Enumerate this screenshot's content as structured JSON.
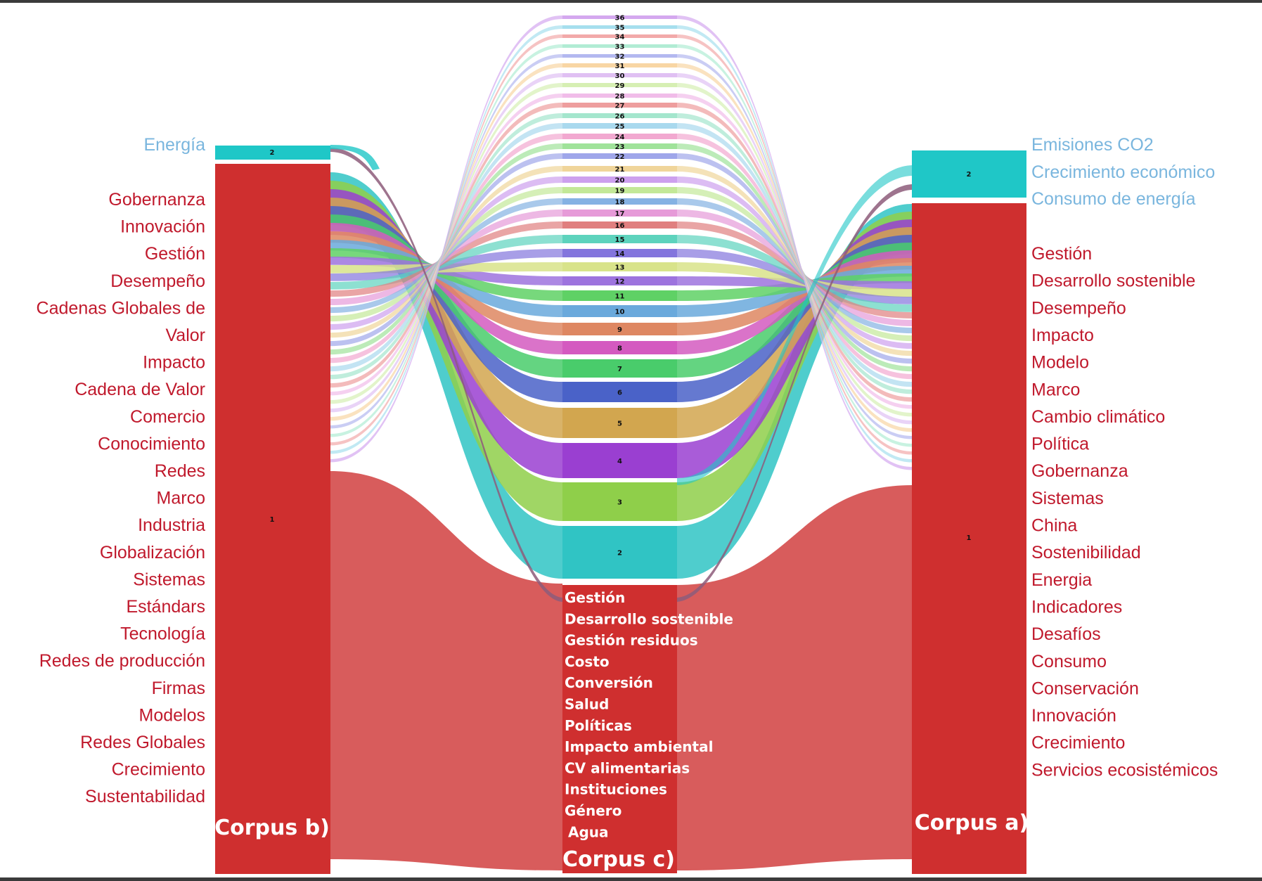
{
  "colors": {
    "red": "#cf2f2f",
    "red_flow": "#d85c5c",
    "teal": "#1fc7c7",
    "red_text": "#c0192c",
    "blue_text": "#7ab6de",
    "cluster_palette": [
      "#d85c5c",
      "#30c4c4",
      "#8fcf4a",
      "#9a3fd1",
      "#d2a64f",
      "#4a62c8",
      "#49cc6b",
      "#d45ac0",
      "#de8762",
      "#6aa9dc",
      "#5fd165",
      "#9d73de",
      "#d8e38a",
      "#8375dd",
      "#5dd3bd",
      "#e07f7f",
      "#e69ad8",
      "#85b2e3",
      "#c3e898",
      "#cda0ee",
      "#f0d59a",
      "#9fa6ea",
      "#9fe39a",
      "#f2a8d0",
      "#a9d9ee",
      "#a4e6cd",
      "#ee9e9e",
      "#f1bce9",
      "#d6efb3",
      "#e0c0f3",
      "#f8d6a4",
      "#b3b8f0",
      "#b1ecd4",
      "#f2a9a9",
      "#a6dfee",
      "#d4a8ef"
    ]
  },
  "corpus_b": {
    "title": "Corpus b)",
    "clusters": [
      "1",
      "2"
    ],
    "keywords_cluster2": [
      "Energía"
    ],
    "keywords_cluster1": [
      "Gobernanza",
      "Innovación",
      "Gestión",
      "Desempeño",
      "Cadenas Globales de",
      "Valor",
      "Impacto",
      "Cadena de Valor",
      "Comercio",
      "Conocimiento",
      "Redes",
      "Marco",
      "Industria",
      "Globalización",
      "Sistemas",
      "Estándars",
      "Tecnología",
      "Redes de producción",
      "Firmas",
      "Modelos",
      "Redes Globales",
      "Crecimiento",
      "Sustentabilidad"
    ]
  },
  "corpus_a": {
    "title": "Corpus a)",
    "clusters": [
      "1",
      "2"
    ],
    "keywords_cluster2": [
      "Emisiones CO2",
      "Crecimiento económico",
      "Consumo de energía"
    ],
    "keywords_cluster1": [
      "Gestión",
      "Desarrollo sostenible",
      "Desempeño",
      "Impacto",
      "Modelo",
      "Marco",
      "Cambio climático",
      "Política",
      "Gobernanza",
      "Sistemas",
      "China",
      "Sostenibilidad",
      "Energia",
      "Indicadores",
      "Desafíos",
      "Consumo",
      "Conservación",
      "Innovación",
      "Crecimiento",
      "Servicios ecosistémicos"
    ]
  },
  "corpus_c": {
    "title": "Corpus c)",
    "cluster_labels": [
      "2",
      "3",
      "4",
      "5",
      "6",
      "7",
      "8",
      "9",
      "10",
      "11",
      "12",
      "13",
      "14",
      "15",
      "16",
      "17",
      "18",
      "19",
      "20",
      "21",
      "22",
      "23",
      "24",
      "25",
      "26",
      "27",
      "28",
      "29",
      "30",
      "31",
      "32",
      "33",
      "34",
      "35",
      "36"
    ],
    "cluster1_keywords": [
      "Gestión",
      "Desarrollo sostenible",
      "Gestión residuos",
      "Costo",
      "Conversión",
      "Salud",
      "Políticas",
      "Impacto ambiental",
      "CV alimentarias",
      "Instituciones",
      "Género",
      "Agua"
    ]
  }
}
